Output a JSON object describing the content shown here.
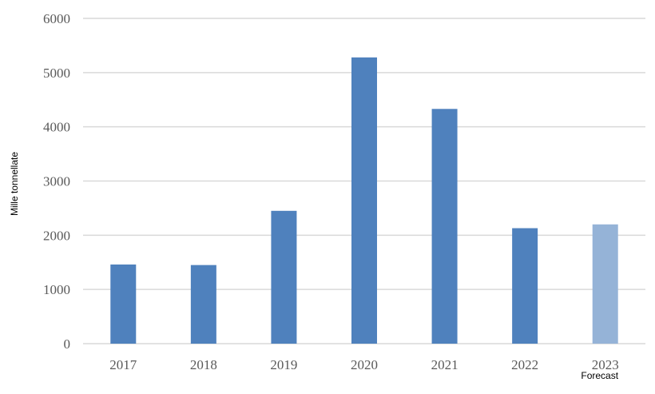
{
  "chart_data": {
    "type": "bar",
    "title": "",
    "xlabel": "",
    "ylabel": "Mille tonnellate",
    "categories": [
      "2017",
      "2018",
      "2019",
      "2020",
      "2021",
      "2022",
      "2023"
    ],
    "values": [
      1460,
      1450,
      2450,
      5280,
      4330,
      2130,
      2200
    ],
    "annotations": [
      {
        "category": "2023",
        "text": "Forecast"
      }
    ],
    "ylim": [
      0,
      6000
    ],
    "yticks": [
      0,
      1000,
      2000,
      3000,
      4000,
      5000,
      6000
    ],
    "grid": true,
    "legend": "none",
    "colors": {
      "actual": "#4F81BD",
      "forecast": "#95B3D7",
      "grid": "#D9D9D9"
    }
  }
}
